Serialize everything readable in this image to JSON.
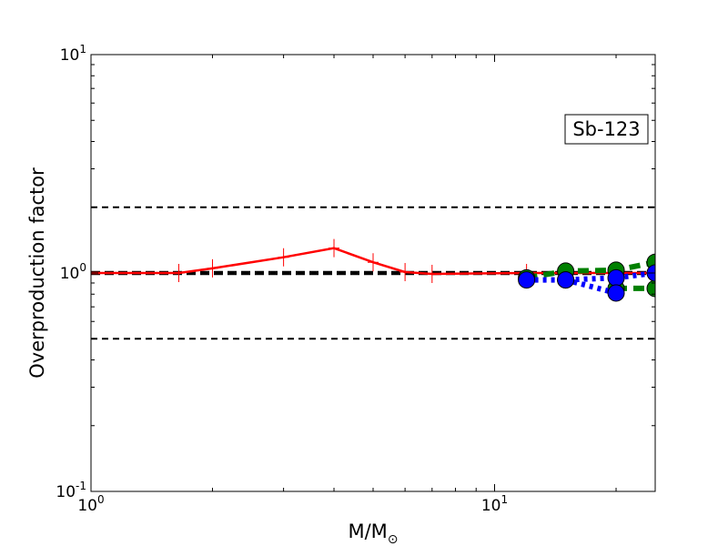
{
  "chart_data": {
    "type": "line",
    "title": "",
    "legend_label": "Sb-123",
    "legend_position": "top-right",
    "xlabel": "M/M",
    "xlabel_subscript": "⊙",
    "ylabel": "Overproduction factor",
    "x_scale": "log",
    "y_scale": "log",
    "xlim": [
      1,
      25
    ],
    "ylim": [
      0.1,
      10
    ],
    "x_ticks": [
      {
        "value": 1,
        "base": "10",
        "exp": "0"
      },
      {
        "value": 10,
        "base": "10",
        "exp": "1"
      }
    ],
    "y_ticks": [
      {
        "value": 0.1,
        "base": "10",
        "exp": "-1"
      },
      {
        "value": 1,
        "base": "10",
        "exp": "0"
      },
      {
        "value": 10,
        "base": "10",
        "exp": "1"
      }
    ],
    "reference_lines": [
      {
        "y": 2,
        "color": "#000000",
        "style": "dashed",
        "weight": "thin"
      },
      {
        "y": 0.5,
        "color": "#000000",
        "style": "dashed",
        "weight": "thin"
      },
      {
        "y": 1,
        "color": "#000000",
        "style": "dashed",
        "weight": "thick"
      }
    ],
    "series": [
      {
        "color": "#ff0000",
        "style": "solid",
        "marker": "plus",
        "x": [
          1.0,
          1.65,
          2.0,
          3.0,
          4.0,
          5.0,
          6.0,
          7.0,
          12.0,
          15.0,
          20.0,
          25.0
        ],
        "y": [
          1.0,
          1.0,
          1.05,
          1.18,
          1.3,
          1.12,
          1.01,
          0.99,
          1.0,
          1.0,
          1.0,
          1.0
        ]
      },
      {
        "color": "#008000",
        "style": "dashed",
        "marker": "circle",
        "x": [
          12.0,
          15.0,
          20.0,
          25.0
        ],
        "y": [
          0.95,
          1.02,
          1.03,
          1.12
        ]
      },
      {
        "color": "#008000",
        "style": "dashed",
        "marker": "circle",
        "x": [
          20.0,
          25.0
        ],
        "y": [
          0.85,
          0.85
        ]
      },
      {
        "color": "#0000ff",
        "style": "dotted",
        "marker": "circle",
        "x": [
          12.0,
          15.0,
          20.0,
          25.0
        ],
        "y": [
          0.93,
          0.93,
          0.95,
          1.0
        ]
      },
      {
        "color": "#0000ff",
        "style": "dotted",
        "marker": "circle",
        "x": [
          15.0,
          20.0
        ],
        "y": [
          0.93,
          0.81
        ]
      }
    ]
  }
}
